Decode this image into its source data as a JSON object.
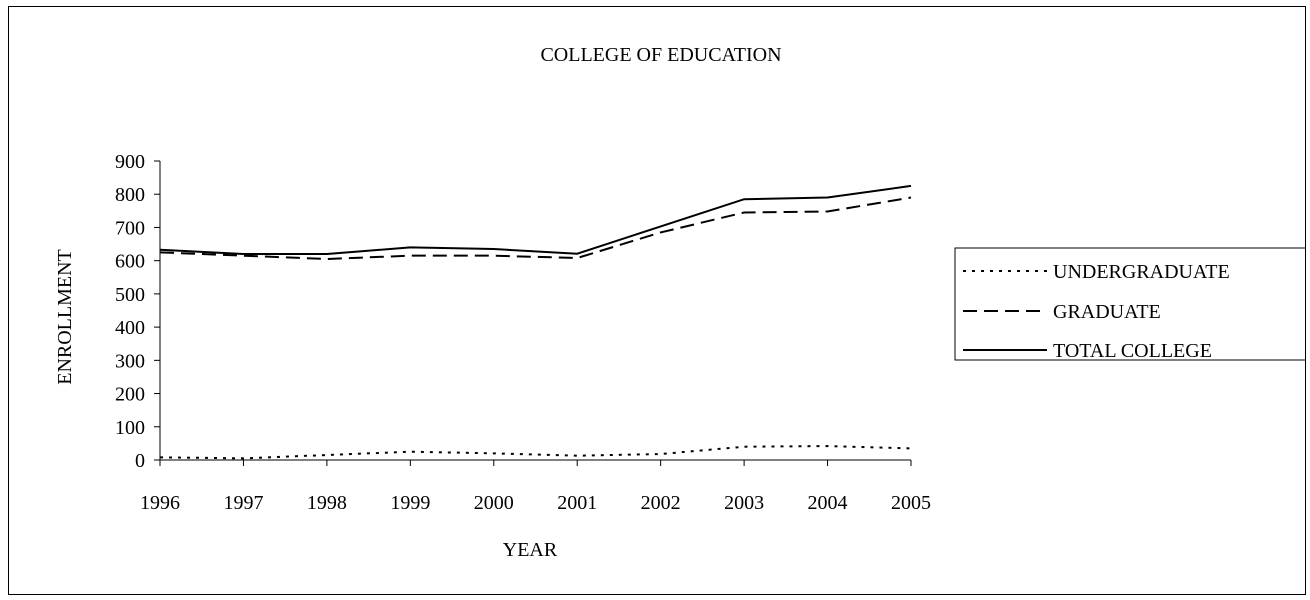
{
  "chart_data": {
    "type": "line",
    "title": "COLLEGE OF EDUCATION",
    "xlabel": "YEAR",
    "ylabel": "ENROLLMENT",
    "categories": [
      "1996",
      "1997",
      "1998",
      "1999",
      "2000",
      "2001",
      "2002",
      "2003",
      "2004",
      "2005"
    ],
    "ylim": [
      0,
      900
    ],
    "yticks": [
      "0",
      "100",
      "200",
      "300",
      "400",
      "500",
      "600",
      "700",
      "800",
      "900"
    ],
    "grid": false,
    "legend": "right",
    "series": [
      {
        "name": "UNDERGRADUATE",
        "style": "dotted",
        "color": "#000000",
        "values": [
          8,
          5,
          15,
          25,
          20,
          13,
          18,
          40,
          42,
          35
        ]
      },
      {
        "name": "GRADUATE",
        "style": "dashed",
        "color": "#000000",
        "values": [
          625,
          615,
          605,
          615,
          615,
          608,
          685,
          745,
          748,
          790
        ]
      },
      {
        "name": "TOTAL COLLEGE",
        "style": "solid",
        "color": "#000000",
        "values": [
          633,
          620,
          620,
          640,
          635,
          621,
          703,
          785,
          790,
          825
        ]
      }
    ]
  }
}
